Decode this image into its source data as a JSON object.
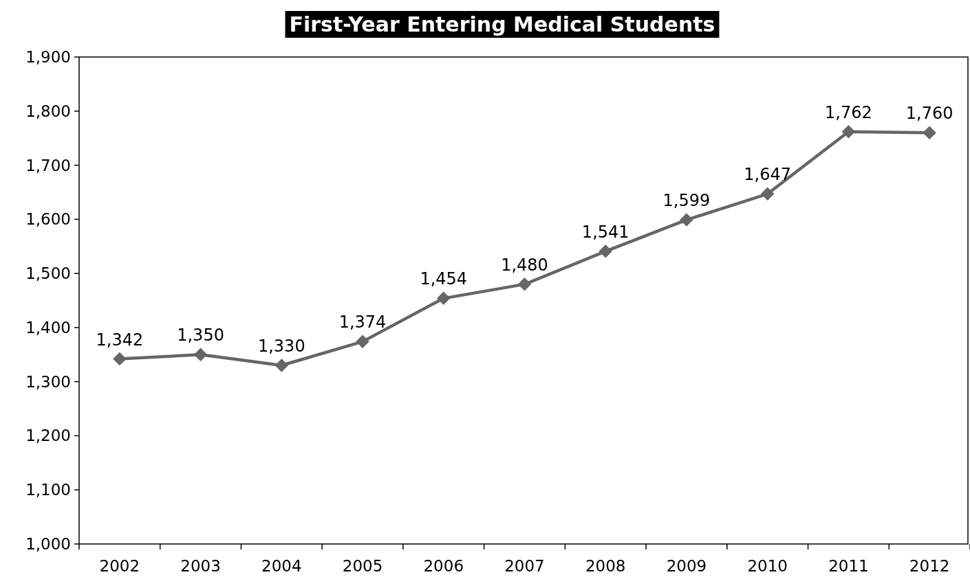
{
  "chart_data": {
    "type": "line",
    "title": "First-Year Entering Medical Students",
    "categories": [
      "2002",
      "2003",
      "2004",
      "2005",
      "2006",
      "2007",
      "2008",
      "2009",
      "2010",
      "2011",
      "2012"
    ],
    "series": [
      {
        "color": "#666666",
        "values": [
          1342,
          1350,
          1330,
          1374,
          1454,
          1480,
          1541,
          1599,
          1647,
          1762,
          1760
        ],
        "value_labels": [
          "1,342",
          "1,350",
          "1,330",
          "1,374",
          "1,454",
          "1,480",
          "1,541",
          "1,599",
          "1,647",
          "1,762",
          "1,760"
        ]
      }
    ],
    "ylim": [
      1000,
      1900
    ],
    "yticks": [
      {
        "value": 1000,
        "label": "1,000"
      },
      {
        "value": 1100,
        "label": "1,100"
      },
      {
        "value": 1200,
        "label": "1,200"
      },
      {
        "value": 1300,
        "label": "1,300"
      },
      {
        "value": 1400,
        "label": "1,400"
      },
      {
        "value": 1500,
        "label": "1,500"
      },
      {
        "value": 1600,
        "label": "1,600"
      },
      {
        "value": 1700,
        "label": "1,700"
      },
      {
        "value": 1800,
        "label": "1,800"
      },
      {
        "value": 1900,
        "label": "1,900"
      }
    ],
    "marker": "diamond",
    "line_style": "solid",
    "grid": false
  }
}
